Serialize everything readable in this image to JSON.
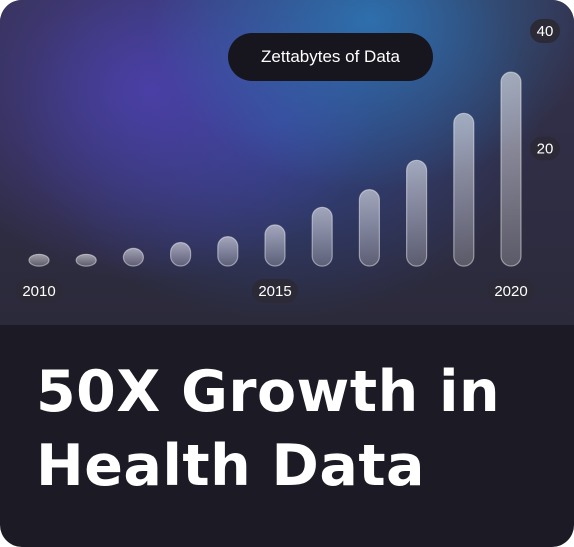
{
  "headline": {
    "line1": "50X Growth in",
    "line2": "Health Data"
  },
  "colors": {
    "card_bg": "#1c1b25",
    "bar_fill": "#ffffff",
    "label_text": "#ffffff",
    "tick_badge": "#2b2a36"
  },
  "chart_data": {
    "type": "bar",
    "title": "Zettabytes of Data",
    "xlabel": "",
    "ylabel": "",
    "x": [
      2010,
      2011,
      2012,
      2013,
      2014,
      2015,
      2016,
      2017,
      2018,
      2019,
      2020
    ],
    "values": [
      2,
      2,
      3,
      4,
      5,
      7,
      10,
      13,
      18,
      26,
      33
    ],
    "ylim": [
      0,
      40
    ],
    "x_tick_labels": [
      {
        "x": 2010,
        "label": "2010"
      },
      {
        "x": 2015,
        "label": "2015"
      },
      {
        "x": 2020,
        "label": "2020"
      }
    ],
    "y_tick_labels": [
      {
        "y": 20,
        "label": "20"
      },
      {
        "y": 40,
        "label": "40"
      }
    ],
    "grid": false,
    "legend": "none"
  }
}
